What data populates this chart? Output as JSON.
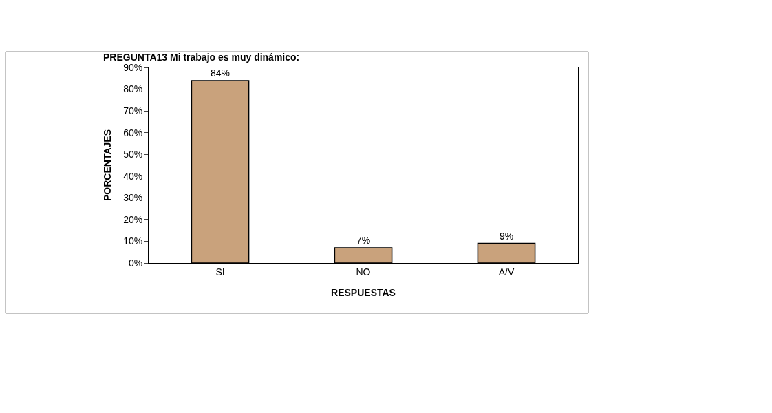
{
  "chart_data": {
    "type": "bar",
    "title": "PREGUNTA13 Mi trabajo es muy dinámico:",
    "xlabel": "RESPUESTAS",
    "ylabel": "PORCENTAJES",
    "categories": [
      "SI",
      "NO",
      "A/V"
    ],
    "values": [
      84,
      7,
      9
    ],
    "value_labels": [
      "84%",
      "7%",
      "9%"
    ],
    "color": "#c9a27c",
    "ylim": [
      0,
      90
    ],
    "yticks": [
      {
        "value": 0,
        "label": "0%"
      },
      {
        "value": 10,
        "label": "10%"
      },
      {
        "value": 20,
        "label": "20%"
      },
      {
        "value": 30,
        "label": "30%"
      },
      {
        "value": 40,
        "label": "40%"
      },
      {
        "value": 50,
        "label": "50%"
      },
      {
        "value": 60,
        "label": "60%"
      },
      {
        "value": 70,
        "label": "70%"
      },
      {
        "value": 80,
        "label": "80%"
      },
      {
        "value": 90,
        "label": "90%"
      }
    ],
    "grid": false,
    "legend": false
  }
}
